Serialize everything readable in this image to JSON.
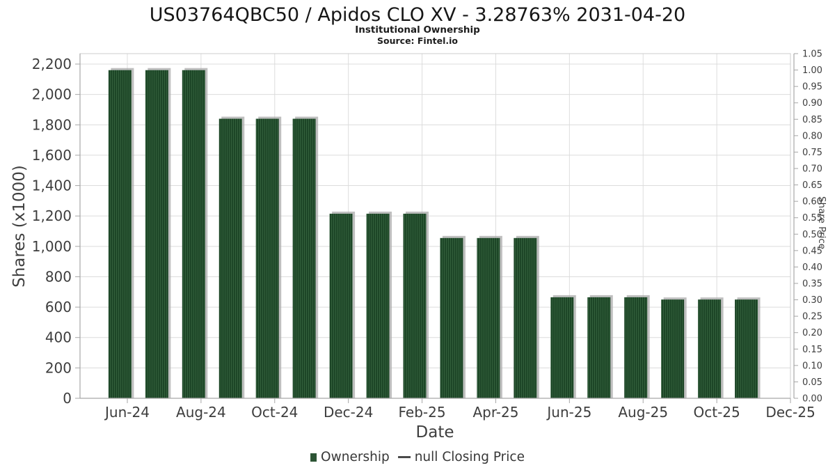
{
  "chart_data": {
    "type": "bar",
    "title": "US03764QBC50 / Apidos CLO XV - 3.28763% 2031-04-20",
    "subtitle": "Institutional Ownership",
    "source": "Source: Fintel.io",
    "xlabel": "Date",
    "ylabel_left": "Shares (x1000)",
    "ylabel_right": "Share Price",
    "categories": [
      "Jun-24",
      "Jul-24",
      "Aug-24",
      "Sep-24",
      "Oct-24",
      "Nov-24",
      "Dec-24",
      "Jan-25",
      "Feb-25",
      "Mar-25",
      "Apr-25",
      "May-25",
      "Jun-25",
      "Jul-25",
      "Aug-25",
      "Sep-25",
      "Oct-25",
      "Nov-25"
    ],
    "series": [
      {
        "name": "Ownership",
        "type": "bar",
        "axis": "left",
        "values": [
          2160,
          2160,
          2160,
          1840,
          1840,
          1840,
          1215,
          1215,
          1215,
          1055,
          1055,
          1055,
          665,
          665,
          665,
          650,
          650,
          650
        ]
      },
      {
        "name": "null Closing Price",
        "type": "line",
        "axis": "right",
        "values": []
      }
    ],
    "x_tick_labels": [
      "Jun-24",
      "Aug-24",
      "Oct-24",
      "Dec-24",
      "Feb-25",
      "Apr-25",
      "Jun-25",
      "Aug-25",
      "Oct-25",
      "Dec-25"
    ],
    "y_left_tick_labels": [
      "0",
      "200",
      "400",
      "600",
      "800",
      "1,000",
      "1,200",
      "1,400",
      "1,600",
      "1,800",
      "2,000",
      "2,200"
    ],
    "y_right_tick_labels": [
      "0.00",
      "0.05",
      "0.10",
      "0.15",
      "0.20",
      "0.25",
      "0.30",
      "0.35",
      "0.40",
      "0.45",
      "0.50",
      "0.55",
      "0.60",
      "0.65",
      "0.70",
      "0.75",
      "0.80",
      "0.85",
      "0.90",
      "0.95",
      "1.00",
      "1.05"
    ],
    "ylim_left": [
      0,
      2270
    ],
    "ylim_right": [
      0,
      1.05
    ],
    "grid": true,
    "legend_position": "bottom",
    "colors": {
      "bar": "#1d4627",
      "bar_stripe": "#33603c",
      "bar_shadow": "#a9a9a9",
      "gridline": "#dcdcdc",
      "plot_border": "#cccccc",
      "axis_line": "#a6a6a6",
      "tick_text": "#3d3d3d"
    }
  },
  "legend": {
    "items": [
      {
        "label": "Ownership",
        "marker": "green-square"
      },
      {
        "label": "null Closing Price",
        "marker": "gray-dash"
      }
    ]
  }
}
